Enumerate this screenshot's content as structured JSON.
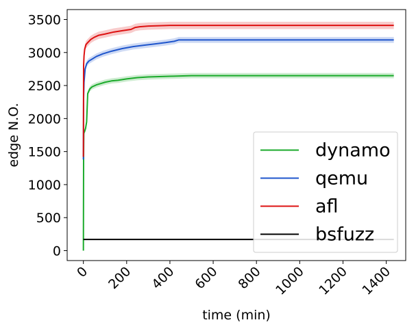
{
  "chart_data": {
    "type": "line",
    "title": "",
    "xlabel": "time (min)",
    "ylabel": "edge N.O.",
    "xlim": [
      -75,
      1490
    ],
    "ylim": [
      -150,
      3650
    ],
    "xticks": [
      0,
      200,
      400,
      600,
      800,
      1000,
      1200,
      1400
    ],
    "yticks": [
      0,
      500,
      1000,
      1500,
      2000,
      2500,
      3000,
      3500
    ],
    "tick_label_rotation_x": 45,
    "grid": false,
    "legend_position": "lower right",
    "series": [
      {
        "name": "dynamo",
        "color": "#1aaa2a",
        "x": [
          0,
          1,
          2,
          5,
          10,
          15,
          20,
          30,
          40,
          60,
          80,
          100,
          130,
          160,
          200,
          250,
          300,
          400,
          500,
          700,
          1000,
          1435
        ],
        "y": [
          0,
          1400,
          1780,
          1800,
          1850,
          1950,
          2380,
          2450,
          2480,
          2510,
          2530,
          2550,
          2570,
          2580,
          2600,
          2620,
          2630,
          2640,
          2650,
          2650,
          2650,
          2650
        ],
        "band": 40
      },
      {
        "name": "qemu",
        "color": "#1e55cc",
        "x": [
          0,
          1,
          3,
          8,
          15,
          25,
          40,
          60,
          90,
          130,
          180,
          230,
          280,
          330,
          380,
          420,
          440,
          500,
          700,
          1000,
          1435
        ],
        "y": [
          1380,
          2300,
          2550,
          2750,
          2830,
          2870,
          2900,
          2940,
          2980,
          3020,
          3060,
          3090,
          3110,
          3130,
          3150,
          3170,
          3190,
          3190,
          3190,
          3190,
          3190
        ],
        "band": 45
      },
      {
        "name": "afl",
        "color": "#dd1111",
        "x": [
          0,
          1,
          3,
          6,
          12,
          20,
          35,
          50,
          70,
          100,
          140,
          180,
          220,
          240,
          260,
          300,
          400,
          500,
          700,
          1000,
          1435
        ],
        "y": [
          1420,
          2800,
          2950,
          3050,
          3120,
          3150,
          3200,
          3230,
          3260,
          3280,
          3310,
          3330,
          3350,
          3380,
          3390,
          3400,
          3410,
          3410,
          3410,
          3410,
          3410
        ],
        "band": 55
      },
      {
        "name": "bsfuzz",
        "color": "#000000",
        "x": [
          0,
          1435
        ],
        "y": [
          170,
          170
        ],
        "band": 0
      }
    ]
  }
}
